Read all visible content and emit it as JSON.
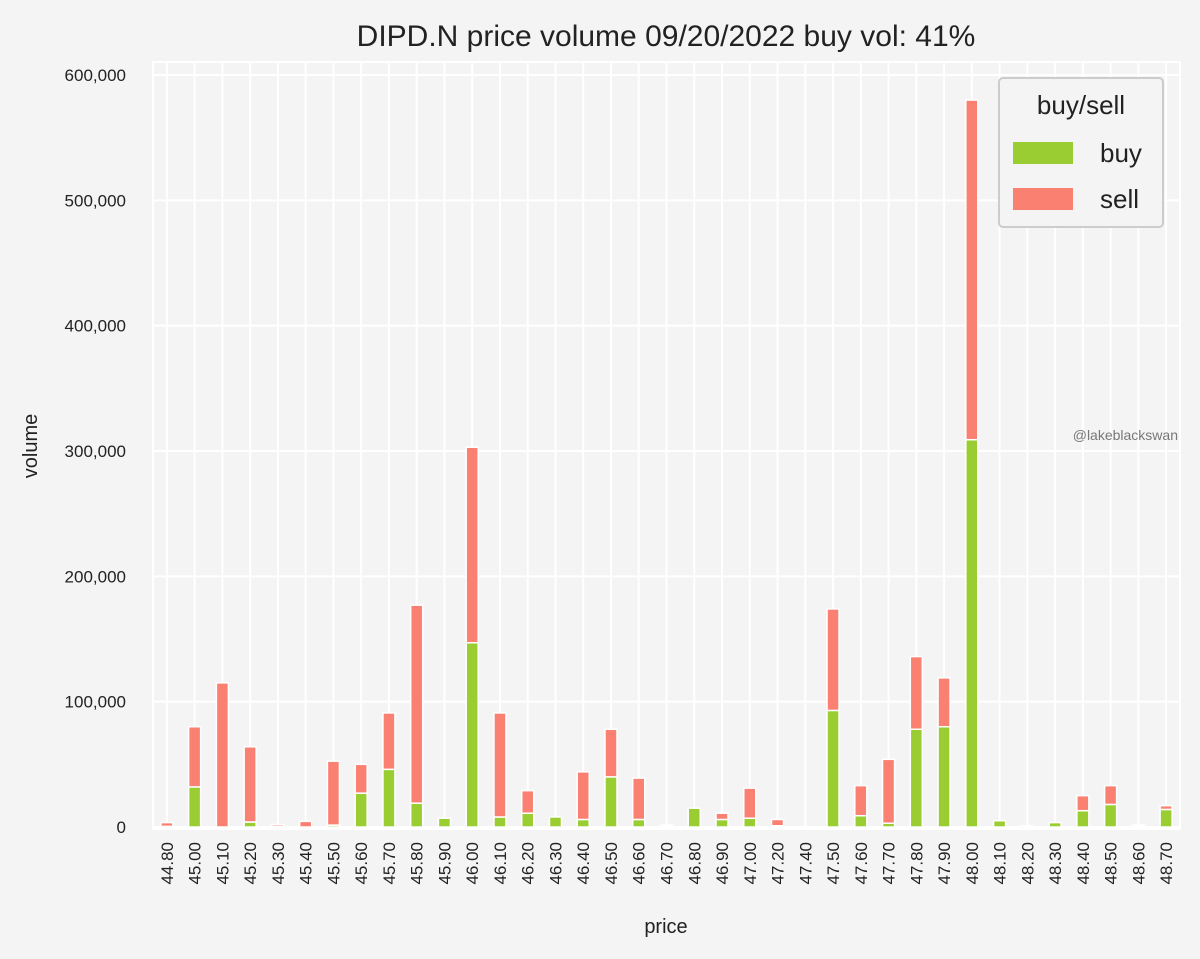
{
  "chart_data": {
    "type": "bar",
    "stacked": true,
    "title": "DIPD.N price volume 09/20/2022 buy vol: 41%",
    "xlabel": "price",
    "ylabel": "volume",
    "ylim": [
      0,
      610000
    ],
    "yticks": [
      0,
      100000,
      200000,
      300000,
      400000,
      500000,
      600000
    ],
    "ytick_labels": [
      "0",
      "100,000",
      "200,000",
      "300,000",
      "400,000",
      "500,000",
      "600,000"
    ],
    "grid": true,
    "legend_title": "buy/sell",
    "legend_position": "top-right",
    "watermark": "@lakeblackswan",
    "categories": [
      "44.80",
      "45.00",
      "45.10",
      "45.20",
      "45.30",
      "45.40",
      "45.50",
      "45.60",
      "45.70",
      "45.80",
      "45.90",
      "46.00",
      "46.10",
      "46.20",
      "46.30",
      "46.40",
      "46.50",
      "46.60",
      "46.70",
      "46.80",
      "46.90",
      "47.00",
      "47.20",
      "47.40",
      "47.50",
      "47.60",
      "47.70",
      "47.80",
      "47.90",
      "48.00",
      "48.10",
      "48.20",
      "48.30",
      "48.40",
      "48.50",
      "48.60",
      "48.70"
    ],
    "series": [
      {
        "name": "buy",
        "color": "#9acd32",
        "values": [
          500,
          32000,
          0,
          4000,
          500,
          0,
          1500,
          27000,
          46000,
          19000,
          7000,
          147000,
          8000,
          11000,
          8000,
          6000,
          40000,
          6000,
          1000,
          15000,
          6000,
          7000,
          1000,
          500,
          93000,
          9000,
          3000,
          78000,
          80000,
          309000,
          5000,
          500,
          3500,
          13000,
          18000,
          500,
          14000
        ]
      },
      {
        "name": "sell",
        "color": "#fa8072",
        "values": [
          3000,
          48000,
          115000,
          60000,
          1500,
          4500,
          51000,
          23000,
          45000,
          158000,
          0,
          156000,
          83000,
          18000,
          0,
          38000,
          38000,
          33000,
          500,
          0,
          5000,
          24000,
          5000,
          0,
          81000,
          24000,
          51000,
          58000,
          39000,
          271000,
          0,
          500,
          0,
          12000,
          15000,
          1000,
          3000
        ]
      }
    ]
  }
}
